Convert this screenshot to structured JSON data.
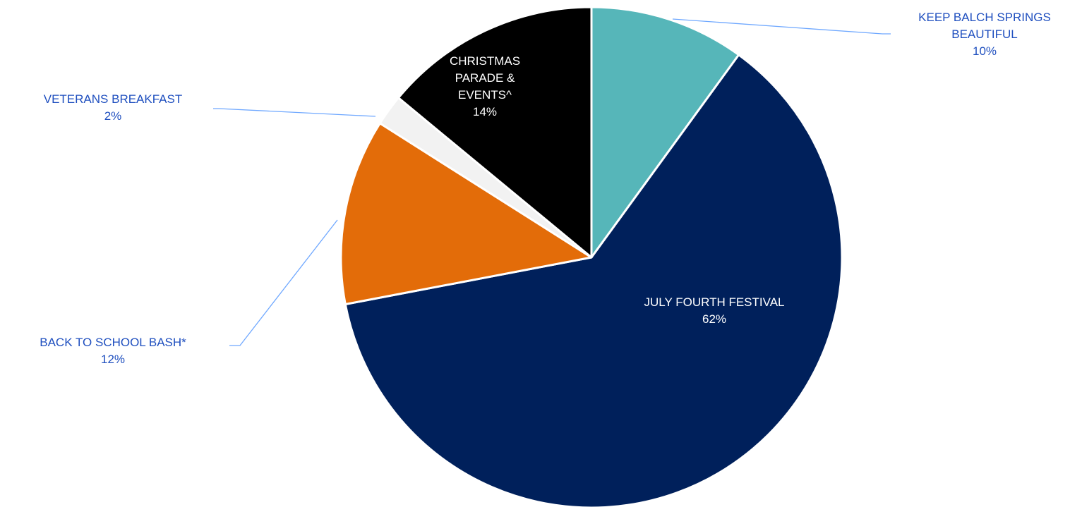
{
  "chart_data": {
    "type": "pie",
    "title": "",
    "slices": [
      {
        "label": "KEEP BALCH SPRINGS BEAUTIFUL",
        "label_lines": [
          "KEEP BALCH SPRINGS",
          "BEAUTIFUL"
        ],
        "value": 10,
        "pct_label": "10%",
        "color": "#56b6b9"
      },
      {
        "label": "JULY FOURTH FESTIVAL",
        "label_lines": [
          "JULY FOURTH FESTIVAL"
        ],
        "value": 62,
        "pct_label": "62%",
        "color": "#00205b"
      },
      {
        "label": "BACK TO SCHOOL BASH*",
        "label_lines": [
          "BACK TO SCHOOL BASH*"
        ],
        "value": 12,
        "pct_label": "12%",
        "color": "#e36c09"
      },
      {
        "label": "VETERANS BREAKFAST",
        "label_lines": [
          "VETERANS BREAKFAST"
        ],
        "value": 2,
        "pct_label": "2%",
        "color": "#f2f2f2"
      },
      {
        "label": "CHRISTMAS PARADE & EVENTS^",
        "label_lines": [
          "CHRISTMAS",
          "PARADE &",
          "EVENTS^"
        ],
        "value": 14,
        "pct_label": "14%",
        "color": "#000000"
      }
    ],
    "start_angle_deg": 0,
    "direction": "clockwise",
    "legend": "none",
    "label_color_outside": "#1f4fbf",
    "leader_line_color": "#6fa8ff"
  }
}
